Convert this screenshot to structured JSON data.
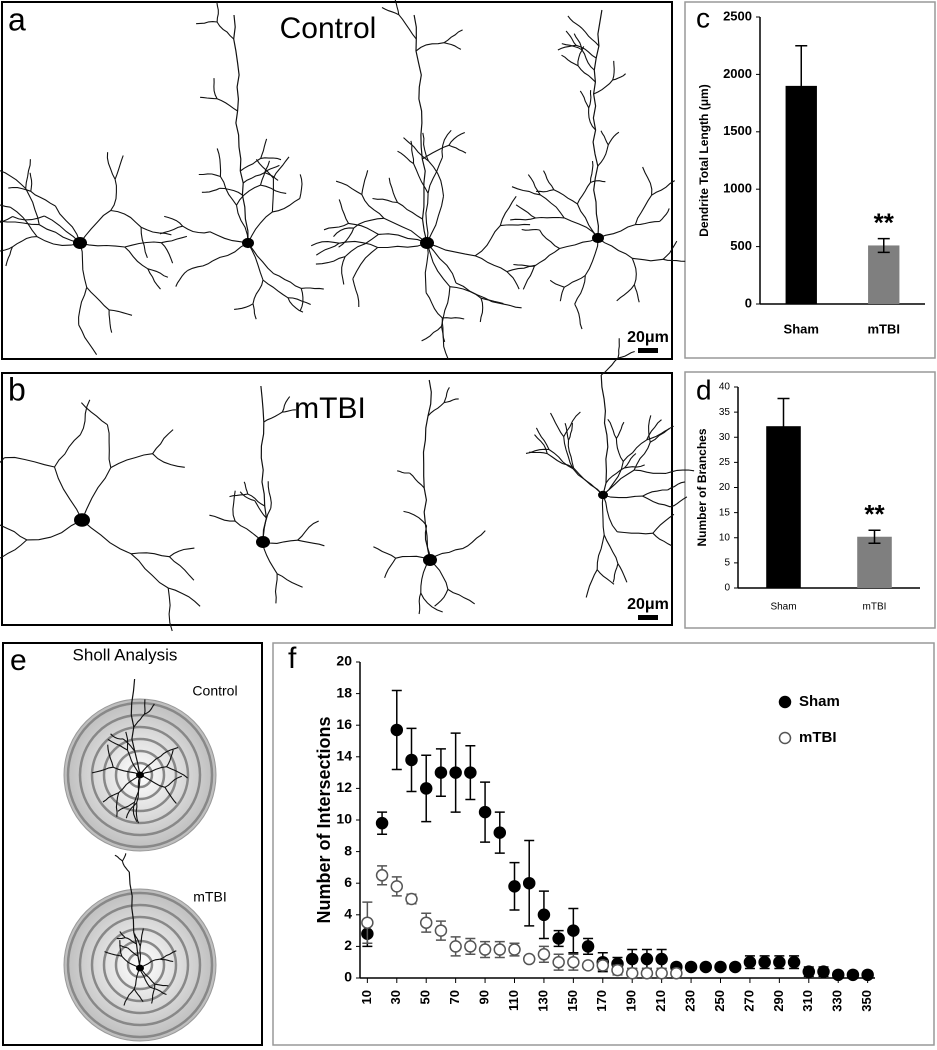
{
  "panels": {
    "a": {
      "label": "a",
      "title": "Control",
      "scale_bar": "20μm"
    },
    "b": {
      "label": "b",
      "title": "mTBI",
      "scale_bar": "20μm"
    },
    "e": {
      "label": "e",
      "title": "Sholl Analysis",
      "upper": "Control",
      "lower": "mTBI"
    }
  },
  "chart_data": [
    {
      "type": "bar",
      "label": "c",
      "ylabel": "Dendrite Total Length (μm)",
      "categories": [
        "Sham",
        "mTBI"
      ],
      "values": [
        1900,
        510
      ],
      "errors": [
        350,
        60
      ],
      "colors": [
        "#000000",
        "#7f7f7f"
      ],
      "annotation": "**",
      "ylim": [
        0,
        2500
      ],
      "yticks": [
        0,
        500,
        1000,
        1500,
        2000,
        2500
      ]
    },
    {
      "type": "bar",
      "label": "d",
      "ylabel": "Number of Branches",
      "categories": [
        "Sham",
        "mTBI"
      ],
      "values": [
        32.2,
        10.2
      ],
      "errors": [
        5.5,
        1.3
      ],
      "colors": [
        "#000000",
        "#7f7f7f"
      ],
      "annotation": "**",
      "ylim": [
        0,
        40
      ],
      "yticks": [
        0,
        5,
        10,
        15,
        20,
        25,
        30,
        35,
        40
      ]
    },
    {
      "type": "scatter",
      "label": "f",
      "ylabel": "Number of Intersections",
      "x": [
        10,
        20,
        30,
        40,
        50,
        60,
        70,
        80,
        90,
        100,
        110,
        120,
        130,
        140,
        150,
        160,
        170,
        180,
        190,
        200,
        210,
        220,
        230,
        240,
        250,
        260,
        270,
        280,
        290,
        300,
        310,
        320,
        330,
        340,
        350
      ],
      "series": [
        {
          "name": "Sham",
          "color": "#000000",
          "marker": "filled",
          "values": [
            2.8,
            9.8,
            15.7,
            13.8,
            12,
            13,
            13,
            13,
            10.5,
            9.2,
            5.8,
            6,
            4,
            2.5,
            3,
            2,
            1,
            0.9,
            1.2,
            1.2,
            1.2,
            0.7,
            0.7,
            0.7,
            0.7,
            0.7,
            1,
            1,
            1,
            1,
            0.4,
            0.4,
            0.2,
            0.2,
            0.2
          ],
          "errors": [
            0.8,
            0.7,
            2.5,
            2,
            2.1,
            1.5,
            2.5,
            1.7,
            1.9,
            1.3,
            1.5,
            2.7,
            1.5,
            0.5,
            1.4,
            0.5,
            0.6,
            0.4,
            0.6,
            0.6,
            0.6,
            0.2,
            0.2,
            0.2,
            0.2,
            0.2,
            0.4,
            0.4,
            0.4,
            0.4,
            0.3,
            0.3,
            0.2,
            0.2,
            0.2
          ]
        },
        {
          "name": "mTBI",
          "color": "#555555",
          "marker": "open",
          "values": [
            3.5,
            6.5,
            5.8,
            5,
            3.5,
            3,
            2,
            2,
            1.8,
            1.8,
            1.8,
            1.2,
            1.5,
            1,
            1,
            0.8,
            0.8,
            0.5,
            0.3,
            0.3,
            0.3,
            0.3,
            null,
            null,
            null,
            null,
            null,
            null,
            null,
            null,
            null,
            null,
            null,
            null,
            null
          ],
          "errors": [
            1.3,
            0.6,
            0.6,
            0.3,
            0.6,
            0.6,
            0.6,
            0.5,
            0.5,
            0.5,
            0.4,
            0.2,
            0.5,
            0.5,
            0.5,
            0.2,
            0.3,
            0.3,
            0.3,
            0.3,
            0.3,
            0.2,
            null,
            null,
            null,
            null,
            null,
            null,
            null,
            null,
            null,
            null,
            null,
            null,
            null
          ]
        }
      ],
      "xlim": [
        5,
        355
      ],
      "xticks": [
        10,
        30,
        50,
        70,
        90,
        110,
        130,
        150,
        170,
        190,
        210,
        230,
        250,
        270,
        290,
        310,
        330,
        350
      ],
      "ylim": [
        0,
        20
      ],
      "yticks": [
        0,
        2,
        4,
        6,
        8,
        10,
        12,
        14,
        16,
        18,
        20
      ],
      "legend": "upper right"
    }
  ]
}
